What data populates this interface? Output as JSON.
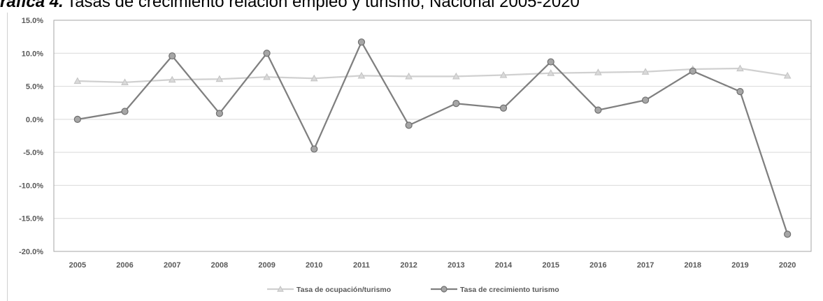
{
  "chart_data": {
    "type": "line",
    "title_prefix": "ráfica 4.",
    "title": "Tasas de crecimiento relación empleo y turismo, Nacional 2005-2020",
    "x": [
      "2005",
      "2006",
      "2007",
      "2008",
      "2009",
      "2010",
      "2011",
      "2012",
      "2013",
      "2014",
      "2015",
      "2016",
      "2017",
      "2018",
      "2019",
      "2020"
    ],
    "ylim": [
      -20,
      15
    ],
    "y_ticks": [
      "15.0%",
      "10.0%",
      "5.0%",
      "0.0%",
      "-5.0%",
      "-10.0%",
      "-15.0%",
      "-20.0%"
    ],
    "y_tick_values": [
      15,
      10,
      5,
      0,
      -5,
      -10,
      -15,
      -20
    ],
    "grid": true,
    "legend_position": "bottom",
    "series": [
      {
        "name": "Tasa de ocupación/turismo",
        "color": "#d0d0d0",
        "marker": "triangle",
        "values": [
          5.8,
          5.6,
          6.0,
          6.1,
          6.4,
          6.2,
          6.6,
          6.5,
          6.5,
          6.7,
          7.0,
          7.1,
          7.2,
          7.6,
          7.7,
          6.6
        ]
      },
      {
        "name": "Tasa de crecimiento turismo",
        "color": "#7f7f7f",
        "marker": "circle",
        "values": [
          0.0,
          1.2,
          9.6,
          0.9,
          10.0,
          -4.5,
          11.7,
          -0.9,
          2.4,
          1.7,
          8.7,
          1.4,
          2.9,
          7.3,
          4.2,
          -17.4
        ]
      }
    ]
  }
}
